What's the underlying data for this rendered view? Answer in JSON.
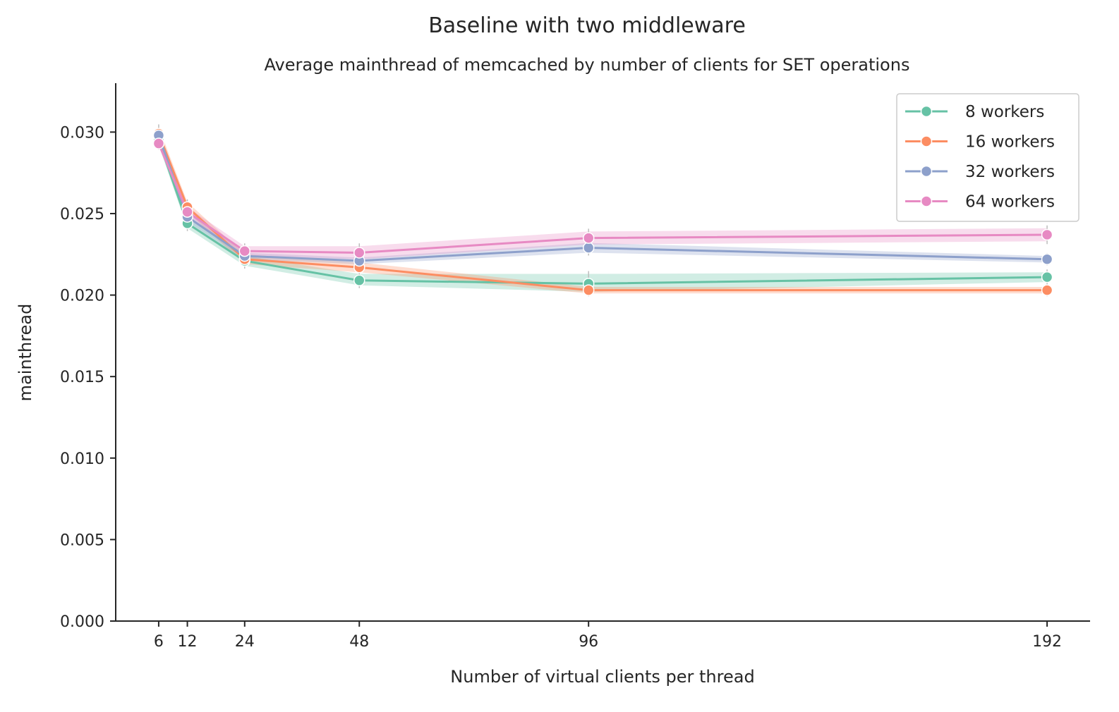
{
  "chart_data": {
    "type": "line",
    "title": "Baseline with two middleware",
    "subtitle": "Average mainthread of memcached by number of clients for SET operations",
    "xlabel": "Number of virtual clients per thread",
    "ylabel": "mainthread",
    "x": [
      6,
      12,
      24,
      48,
      96,
      192
    ],
    "x_tick_labels": [
      "6",
      "12",
      "24",
      "48",
      "96",
      "192"
    ],
    "xlim": [
      -3,
      201
    ],
    "ylim": [
      0,
      0.033
    ],
    "y_ticks": [
      0.0,
      0.005,
      0.01,
      0.015,
      0.02,
      0.025,
      0.03
    ],
    "y_tick_labels": [
      "0.000",
      "0.005",
      "0.010",
      "0.015",
      "0.020",
      "0.025",
      "0.030"
    ],
    "grid": false,
    "legend_position": "top-right",
    "series": [
      {
        "name": "8 workers",
        "color": "#66c2a5",
        "values": [
          0.0295,
          0.0244,
          0.0221,
          0.0209,
          0.0207,
          0.0211
        ],
        "ci_low": [
          0.0292,
          0.0241,
          0.0218,
          0.0206,
          0.0202,
          0.0208
        ],
        "ci_high": [
          0.0298,
          0.0247,
          0.0224,
          0.0213,
          0.0213,
          0.0214
        ]
      },
      {
        "name": "16 workers",
        "color": "#fc8d62",
        "values": [
          0.0299,
          0.0254,
          0.0222,
          0.0217,
          0.0203,
          0.0203
        ],
        "ci_low": [
          0.0295,
          0.0251,
          0.0219,
          0.0214,
          0.0201,
          0.0201
        ],
        "ci_high": [
          0.0303,
          0.0257,
          0.0225,
          0.022,
          0.0205,
          0.0205
        ]
      },
      {
        "name": "32 workers",
        "color": "#8da0cb",
        "values": [
          0.0298,
          0.0248,
          0.0224,
          0.0221,
          0.0229,
          0.0222
        ],
        "ci_low": [
          0.0295,
          0.0245,
          0.0222,
          0.0219,
          0.0226,
          0.022
        ],
        "ci_high": [
          0.0301,
          0.0251,
          0.0226,
          0.0223,
          0.0232,
          0.0224
        ]
      },
      {
        "name": "64 workers",
        "color": "#e78ac3",
        "values": [
          0.0293,
          0.0251,
          0.0227,
          0.0226,
          0.0235,
          0.0237
        ],
        "ci_low": [
          0.0291,
          0.0248,
          0.0224,
          0.0222,
          0.0231,
          0.0233
        ],
        "ci_high": [
          0.0295,
          0.0254,
          0.023,
          0.023,
          0.0239,
          0.0241
        ]
      }
    ]
  }
}
